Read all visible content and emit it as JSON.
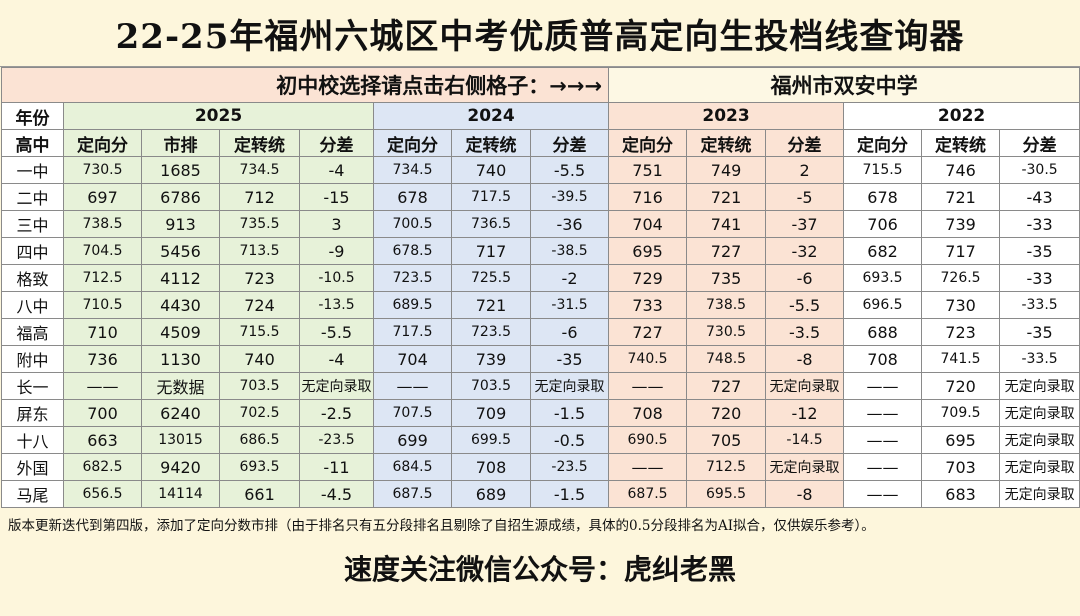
{
  "title": "22-25年福州六城区中考优质普高定向生投档线查询器",
  "selector_prompt": "初中校选择请点击右侧格子：→→→",
  "selected_school": "福州市双安中学",
  "year_label": "年份",
  "school_label": "高中",
  "years": [
    "2025",
    "2024",
    "2023",
    "2022"
  ],
  "cols_2025": [
    "定向分",
    "市排",
    "定转统",
    "分差"
  ],
  "cols_other": [
    "定向分",
    "定转统",
    "分差"
  ],
  "rows": [
    {
      "school": "一中",
      "y2025": [
        "730.5",
        "1685",
        "734.5",
        "-4"
      ],
      "y2024": [
        "734.5",
        "740",
        "-5.5"
      ],
      "y2023": [
        "751",
        "749",
        "2"
      ],
      "y2022": [
        "715.5",
        "746",
        "-30.5"
      ]
    },
    {
      "school": "二中",
      "y2025": [
        "697",
        "6786",
        "712",
        "-15"
      ],
      "y2024": [
        "678",
        "717.5",
        "-39.5"
      ],
      "y2023": [
        "716",
        "721",
        "-5"
      ],
      "y2022": [
        "678",
        "721",
        "-43"
      ]
    },
    {
      "school": "三中",
      "y2025": [
        "738.5",
        "913",
        "735.5",
        "3"
      ],
      "y2024": [
        "700.5",
        "736.5",
        "-36"
      ],
      "y2023": [
        "704",
        "741",
        "-37"
      ],
      "y2022": [
        "706",
        "739",
        "-33"
      ]
    },
    {
      "school": "四中",
      "y2025": [
        "704.5",
        "5456",
        "713.5",
        "-9"
      ],
      "y2024": [
        "678.5",
        "717",
        "-38.5"
      ],
      "y2023": [
        "695",
        "727",
        "-32"
      ],
      "y2022": [
        "682",
        "717",
        "-35"
      ]
    },
    {
      "school": "格致",
      "y2025": [
        "712.5",
        "4112",
        "723",
        "-10.5"
      ],
      "y2024": [
        "723.5",
        "725.5",
        "-2"
      ],
      "y2023": [
        "729",
        "735",
        "-6"
      ],
      "y2022": [
        "693.5",
        "726.5",
        "-33"
      ]
    },
    {
      "school": "八中",
      "y2025": [
        "710.5",
        "4430",
        "724",
        "-13.5"
      ],
      "y2024": [
        "689.5",
        "721",
        "-31.5"
      ],
      "y2023": [
        "733",
        "738.5",
        "-5.5"
      ],
      "y2022": [
        "696.5",
        "730",
        "-33.5"
      ]
    },
    {
      "school": "福高",
      "y2025": [
        "710",
        "4509",
        "715.5",
        "-5.5"
      ],
      "y2024": [
        "717.5",
        "723.5",
        "-6"
      ],
      "y2023": [
        "727",
        "730.5",
        "-3.5"
      ],
      "y2022": [
        "688",
        "723",
        "-35"
      ]
    },
    {
      "school": "附中",
      "y2025": [
        "736",
        "1130",
        "740",
        "-4"
      ],
      "y2024": [
        "704",
        "739",
        "-35"
      ],
      "y2023": [
        "740.5",
        "748.5",
        "-8"
      ],
      "y2022": [
        "708",
        "741.5",
        "-33.5"
      ]
    },
    {
      "school": "长一",
      "y2025": [
        "——",
        "无数据",
        "703.5",
        "无定向录取"
      ],
      "y2024": [
        "——",
        "703.5",
        "无定向录取"
      ],
      "y2023": [
        "——",
        "727",
        "无定向录取"
      ],
      "y2022": [
        "——",
        "720",
        "无定向录取"
      ]
    },
    {
      "school": "屏东",
      "y2025": [
        "700",
        "6240",
        "702.5",
        "-2.5"
      ],
      "y2024": [
        "707.5",
        "709",
        "-1.5"
      ],
      "y2023": [
        "708",
        "720",
        "-12"
      ],
      "y2022": [
        "——",
        "709.5",
        "无定向录取"
      ]
    },
    {
      "school": "十八",
      "y2025": [
        "663",
        "13015",
        "686.5",
        "-23.5"
      ],
      "y2024": [
        "699",
        "699.5",
        "-0.5"
      ],
      "y2023": [
        "690.5",
        "705",
        "-14.5"
      ],
      "y2022": [
        "——",
        "695",
        "无定向录取"
      ]
    },
    {
      "school": "外国",
      "y2025": [
        "682.5",
        "9420",
        "693.5",
        "-11"
      ],
      "y2024": [
        "684.5",
        "708",
        "-23.5"
      ],
      "y2023": [
        "——",
        "712.5",
        "无定向录取"
      ],
      "y2022": [
        "——",
        "703",
        "无定向录取"
      ]
    },
    {
      "school": "马尾",
      "y2025": [
        "656.5",
        "14114",
        "661",
        "-4.5"
      ],
      "y2024": [
        "687.5",
        "689",
        "-1.5"
      ],
      "y2023": [
        "687.5",
        "695.5",
        "-8"
      ],
      "y2022": [
        "——",
        "683",
        "无定向录取"
      ]
    }
  ],
  "note": "版本更新迭代到第四版，添加了定向分数市排（由于排名只有五分段排名且剔除了自招生源成绩，具体的0.5分段排名为AI拟合，仅供娱乐参考）。",
  "footer": "速度关注微信公众号：虎纠老黑",
  "colors": {
    "g2025": "#e7f2d9",
    "b2024": "#dde6f4",
    "o2023": "#fbe3d4",
    "w2022": "#ffffff",
    "page": "#fdf6dc"
  }
}
